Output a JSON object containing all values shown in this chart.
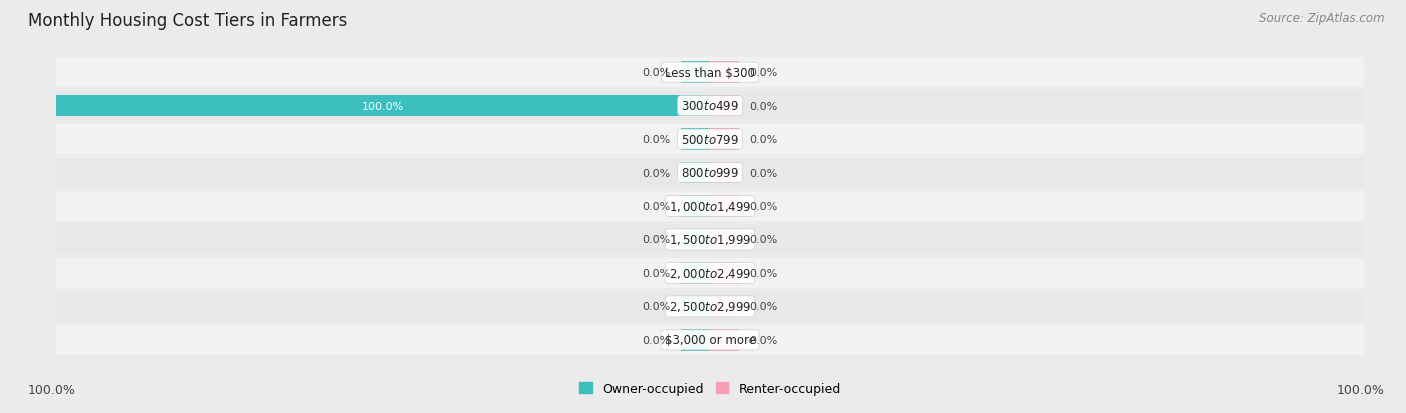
{
  "title": "Monthly Housing Cost Tiers in Farmers",
  "source": "Source: ZipAtlas.com",
  "categories": [
    "Less than $300",
    "$300 to $499",
    "$500 to $799",
    "$800 to $999",
    "$1,000 to $1,499",
    "$1,500 to $1,999",
    "$2,000 to $2,499",
    "$2,500 to $2,999",
    "$3,000 or more"
  ],
  "owner_values": [
    0.0,
    100.0,
    0.0,
    0.0,
    0.0,
    0.0,
    0.0,
    0.0,
    0.0
  ],
  "renter_values": [
    0.0,
    0.0,
    0.0,
    0.0,
    0.0,
    0.0,
    0.0,
    0.0,
    0.0
  ],
  "owner_color": "#3DBFBF",
  "renter_color": "#F4A0B5",
  "owner_label": "Owner-occupied",
  "renter_label": "Renter-occupied",
  "bg_color": "#EBEBEB",
  "row_bg_even": "#F2F2F2",
  "row_bg_odd": "#E8E8E8",
  "axis_label_left": "100.0%",
  "axis_label_right": "100.0%",
  "xlim": 100,
  "title_fontsize": 12,
  "source_fontsize": 8.5,
  "bar_label_fontsize": 8,
  "category_fontsize": 8.5,
  "legend_fontsize": 9,
  "stub_size": 4.5
}
